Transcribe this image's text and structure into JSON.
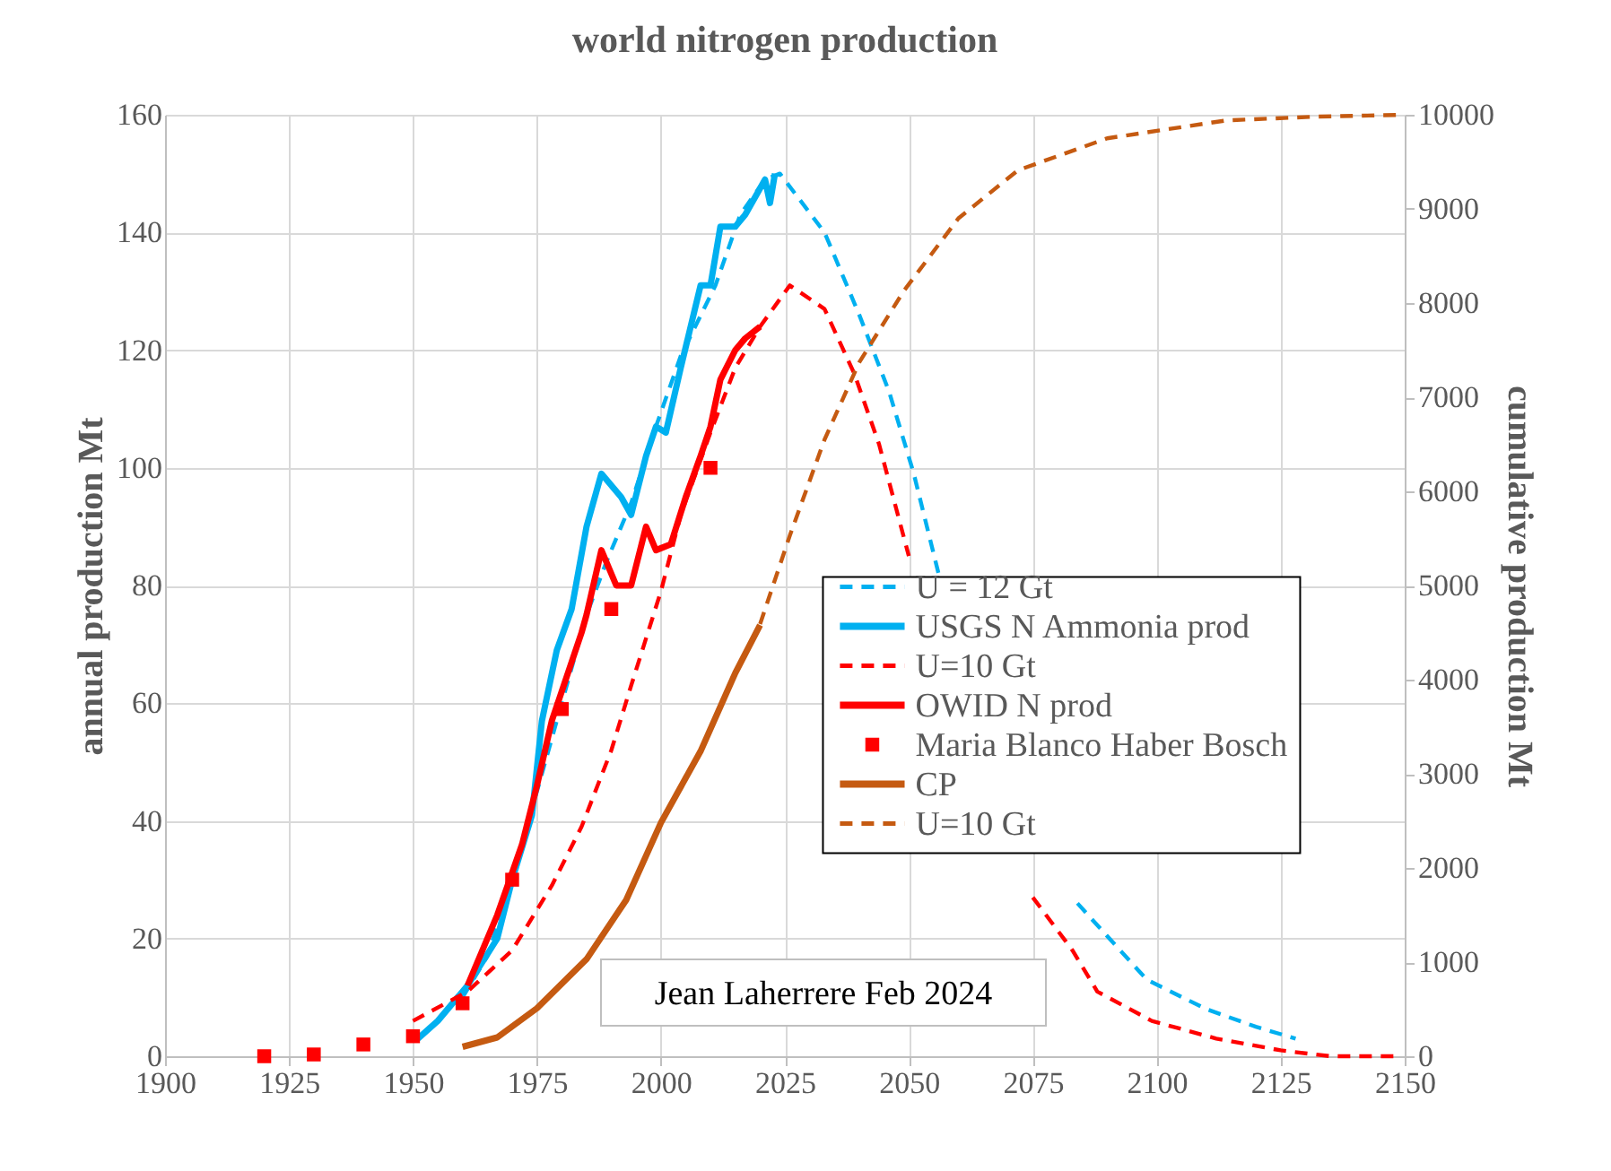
{
  "chart_data": {
    "type": "line",
    "title": "world nitrogen production",
    "ylabel": "annual production Mt",
    "y2label": "cumulative production Mt",
    "xlim": [
      1900,
      2150
    ],
    "xticks": [
      1900,
      1925,
      1950,
      1975,
      2000,
      2025,
      2050,
      2075,
      2100,
      2125,
      2150
    ],
    "ylim": [
      0,
      160
    ],
    "yticks": [
      0,
      20,
      40,
      60,
      80,
      100,
      120,
      140,
      160
    ],
    "y2lim": [
      0,
      10000
    ],
    "y2ticks": [
      0,
      1000,
      2000,
      3000,
      4000,
      5000,
      6000,
      7000,
      8000,
      9000,
      10000
    ],
    "grid": true,
    "legend": "bottom right",
    "annotations": [
      "Jean Laherrere Feb 2024"
    ],
    "series": [
      {
        "name": "U = 12 Gt",
        "type": "line",
        "line_style": "dashed",
        "color": "#00b0f0",
        "x": [
          1960,
          1965,
          1970,
          1975,
          1980,
          1985,
          1989,
          1994,
          1999,
          2004,
          2011,
          2016,
          2021,
          2024,
          2033,
          2040,
          2046,
          2051,
          2056,
          2070,
          2084,
          2098,
          2110,
          2120,
          2128
        ],
        "values": [
          10,
          17,
          30,
          45,
          60,
          75,
          84,
          94,
          107,
          119,
          131,
          143,
          149,
          150,
          140,
          126,
          113,
          99,
          82,
          null,
          26,
          13,
          8,
          5,
          3
        ]
      },
      {
        "name": "USGS N Ammonia prod",
        "line_style": "solid",
        "color": "#00b0f0",
        "x": [
          1951,
          1955,
          1961,
          1967,
          1970,
          1974,
          1976,
          1979,
          1982,
          1985,
          1988,
          1992,
          1994,
          1997,
          1999,
          2001,
          2004,
          2008,
          2010,
          2012,
          2015,
          2017,
          2021,
          2022,
          2023
        ],
        "values": [
          3,
          6,
          12,
          20,
          30,
          41,
          57,
          69,
          76,
          90,
          99,
          95,
          92,
          102,
          107,
          106,
          117,
          131,
          131,
          141,
          141,
          143,
          149,
          145,
          150
        ]
      },
      {
        "name": "U=10 Gt",
        "line_style": "dashed",
        "color": "#ff0000",
        "x": [
          1950,
          1961,
          1970,
          1978,
          1984,
          1990,
          1994,
          2000,
          2004,
          2010,
          2015,
          2020,
          2026,
          2033,
          2039,
          2044,
          2050,
          2062,
          2075,
          2083,
          2088,
          2099,
          2112,
          2125,
          2135,
          2149
        ],
        "values": [
          6,
          11,
          18,
          29,
          39,
          52,
          63,
          79,
          92,
          106,
          117,
          124,
          131,
          127,
          116,
          104,
          85,
          null,
          27,
          18,
          11,
          6,
          3,
          1,
          0,
          0
        ]
      },
      {
        "name": "OWID N prod",
        "line_style": "solid",
        "color": "#ff0000",
        "x": [
          1961,
          1967,
          1972,
          1975,
          1978,
          1980,
          1984,
          1985,
          1988,
          1991,
          1994,
          1997,
          1999,
          2002,
          2005,
          2008,
          2010,
          2012,
          2015,
          2017,
          2020
        ],
        "values": [
          12,
          24,
          36,
          46,
          57,
          62,
          72,
          75,
          86,
          80,
          80,
          90,
          86,
          87,
          95,
          102,
          107,
          115,
          120,
          122,
          124
        ]
      },
      {
        "name": "Maria Blanco Haber Bosch",
        "type": "scatter",
        "marker": "square",
        "color": "#ff0000",
        "x": [
          1920,
          1930,
          1940,
          1950,
          1960,
          1970,
          1980,
          1990,
          2010
        ],
        "values": [
          0,
          0.3,
          2,
          3.4,
          9,
          30,
          59,
          76,
          100
        ]
      },
      {
        "name": "CP",
        "line_style": "solid",
        "axis": "y2",
        "color": "#c55a11",
        "x": [
          1960,
          1967,
          1975,
          1985,
          1993,
          2000,
          2008,
          2015,
          2020
        ],
        "values": [
          100,
          200,
          510,
          1030,
          1660,
          2480,
          3240,
          4070,
          4580
        ]
      },
      {
        "name": "U=10 Gt",
        "line_style": "dashed",
        "axis": "y2",
        "color": "#c55a11",
        "x": [
          2020,
          2026,
          2033,
          2040,
          2049,
          2060,
          2072,
          2090,
          2114,
          2132,
          2150
        ],
        "values": [
          4590,
          5530,
          6550,
          7370,
          8130,
          8900,
          9410,
          9750,
          9940,
          9980,
          10000
        ]
      }
    ]
  }
}
